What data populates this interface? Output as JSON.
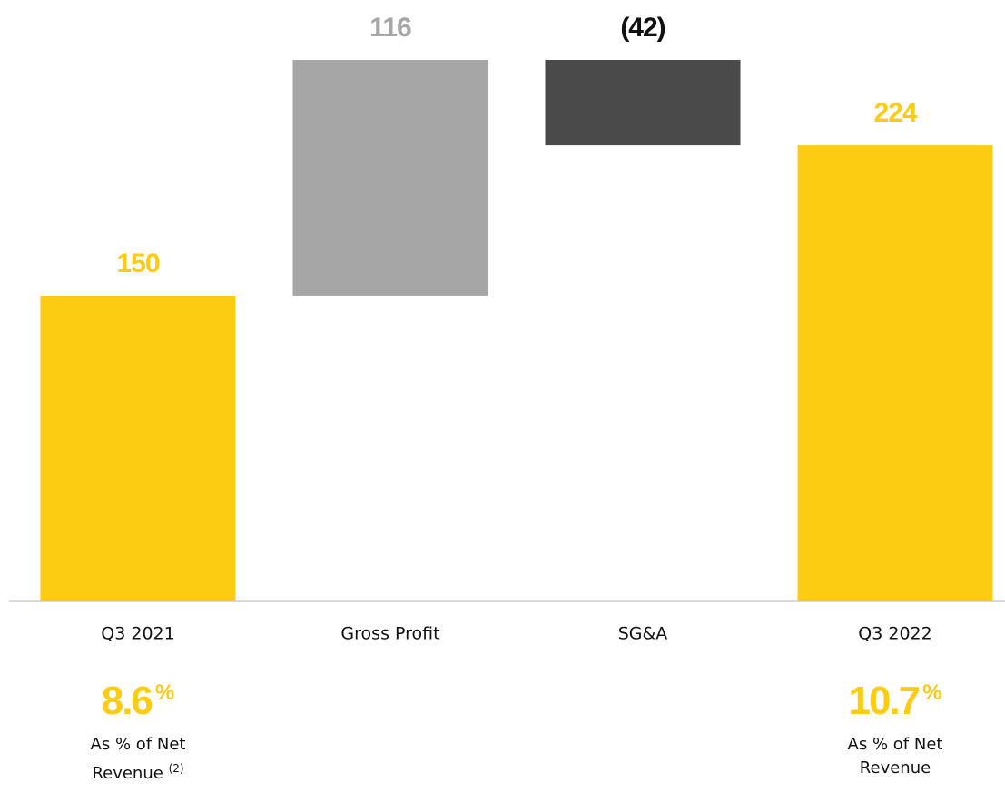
{
  "chart_data": {
    "type": "waterfall",
    "categories": [
      "Q3 2021",
      "Gross Profit",
      "SG&A",
      "Q3 2022"
    ],
    "values": [
      150,
      116,
      -42,
      224
    ],
    "value_labels": [
      "150",
      "116",
      "(42)",
      "224"
    ],
    "is_total": [
      true,
      false,
      false,
      true
    ],
    "colors": [
      "#fccc12",
      "#a6a6a6",
      "#4a4a4a",
      "#fccc12"
    ],
    "label_colors": [
      "#fccc12",
      "#a6a6a6",
      "#111111",
      "#fccc12"
    ],
    "annotations": [
      {
        "category": 0,
        "figure": "8.6",
        "unit": "%",
        "caption": "As % of Net Revenue",
        "footnote": "(2)"
      },
      {
        "category": 3,
        "figure": "10.7",
        "unit": "%",
        "caption": "As % of Net Revenue"
      }
    ]
  }
}
